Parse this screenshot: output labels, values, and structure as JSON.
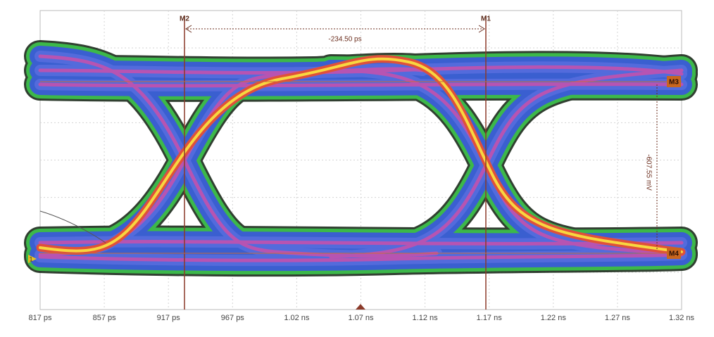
{
  "x_axis": {
    "labels": [
      "817 ps",
      "857 ps",
      "917 ps",
      "967 ps",
      "1.02 ns",
      "1.07 ns",
      "1.12 ns",
      "1.17 ns",
      "1.22 ns",
      "1.27 ns",
      "1.32 ns"
    ]
  },
  "markers": {
    "m1": "M1",
    "m2": "M2",
    "m3": "M3",
    "m4": "M4"
  },
  "measurements": {
    "time_delta": "-234.50 ps",
    "voltage_delta": "-607.55 mV"
  },
  "channel_label": "1"
}
